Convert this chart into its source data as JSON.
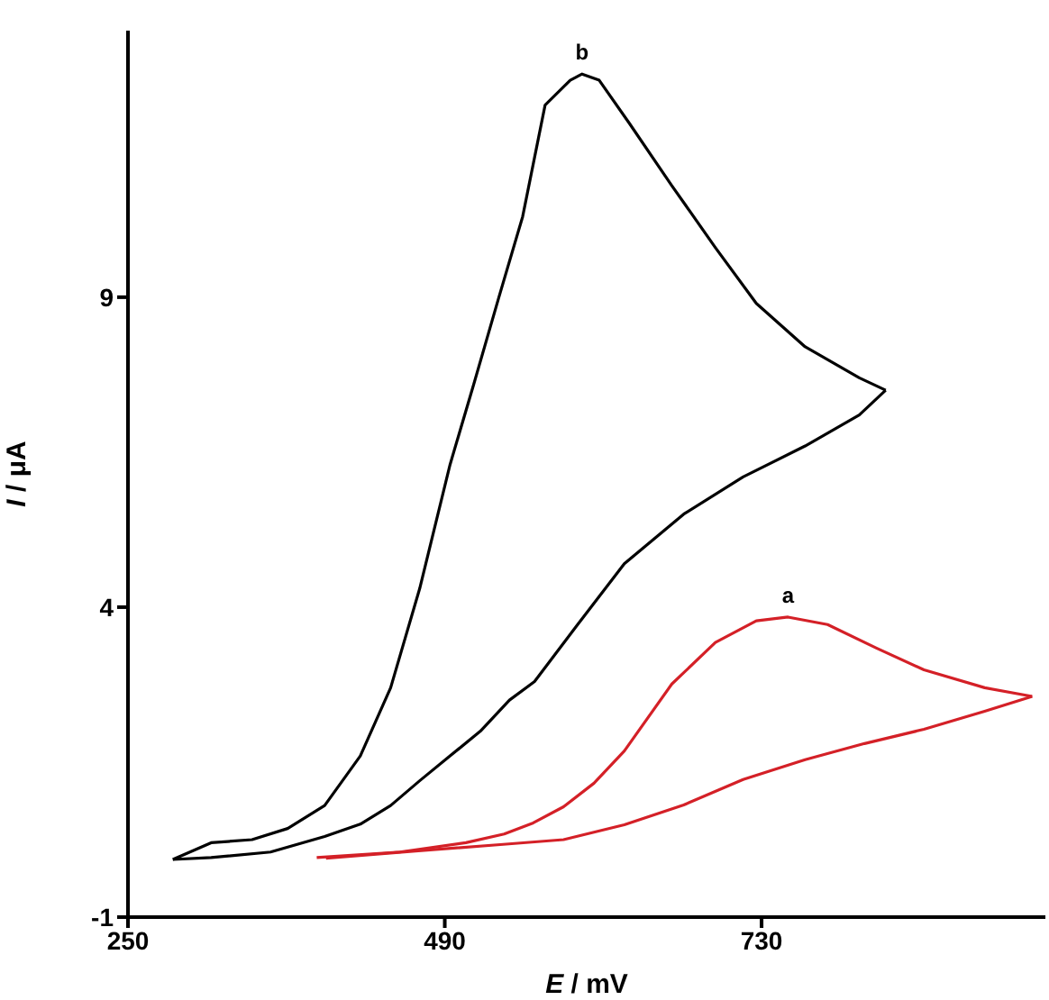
{
  "chart_data": {
    "type": "line",
    "xlabel": "E / mV",
    "ylabel": "I / μA",
    "xlim": [
      250,
      945
    ],
    "ylim": [
      -1,
      13.3
    ],
    "xticks": [
      250,
      490,
      730
    ],
    "yticks": [
      -1,
      4,
      9
    ],
    "grid": false,
    "legend": false,
    "marker": "none",
    "line_style": "solid",
    "series": [
      {
        "name": "b",
        "color": "#000000",
        "x": [
          284,
          313,
          344,
          371,
          399,
          426,
          449,
          471,
          494,
          512,
          531,
          549,
          566,
          585,
          594,
          607,
          630,
          662,
          695,
          726,
          763,
          804,
          824
        ],
        "values": [
          -0.07,
          0.2,
          0.25,
          0.43,
          0.8,
          1.6,
          2.7,
          4.3,
          6.3,
          7.6,
          9.0,
          10.3,
          12.1,
          12.5,
          12.6,
          12.5,
          11.8,
          10.8,
          9.8,
          8.9,
          8.2,
          7.7,
          7.5
        ]
      },
      {
        "color": "#000000",
        "x": [
          824,
          804,
          763,
          716,
          671,
          626,
          590,
          558,
          539,
          517,
          494,
          471,
          449,
          426,
          399,
          358,
          313,
          284
        ],
        "values": [
          7.5,
          7.1,
          6.6,
          6.1,
          5.5,
          4.7,
          3.7,
          2.8,
          2.5,
          2.0,
          1.6,
          1.2,
          0.8,
          0.5,
          0.3,
          0.05,
          -0.04,
          -0.07
        ]
      },
      {
        "name": "a",
        "color": "#d42027",
        "x": [
          393,
          456,
          506,
          535,
          557,
          580,
          603,
          626,
          662,
          695,
          726,
          750,
          780,
          817,
          853,
          899,
          935
        ],
        "values": [
          -0.04,
          0.05,
          0.2,
          0.34,
          0.52,
          0.78,
          1.16,
          1.68,
          2.76,
          3.43,
          3.78,
          3.84,
          3.72,
          3.34,
          2.99,
          2.7,
          2.56
        ]
      },
      {
        "color": "#d42027",
        "x": [
          935,
          899,
          853,
          808,
          763,
          716,
          671,
          626,
          580,
          532,
          470,
          400
        ],
        "values": [
          2.56,
          2.32,
          2.03,
          1.8,
          1.54,
          1.22,
          0.81,
          0.49,
          0.25,
          0.17,
          0.07,
          -0.05
        ]
      }
    ]
  }
}
